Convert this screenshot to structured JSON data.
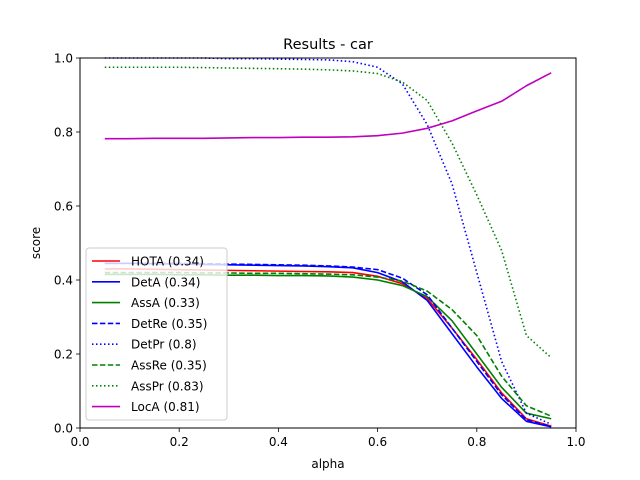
{
  "chart_data": {
    "type": "line",
    "title": "Results - car",
    "xlabel": "alpha",
    "ylabel": "score",
    "xlim": [
      0.0,
      1.0
    ],
    "ylim": [
      0.0,
      1.0
    ],
    "xticks": [
      0.0,
      0.2,
      0.4,
      0.6,
      0.8,
      1.0
    ],
    "yticks": [
      0.0,
      0.2,
      0.4,
      0.6,
      0.8,
      1.0
    ],
    "xtick_labels": [
      "0.0",
      "0.2",
      "0.4",
      "0.6",
      "0.8",
      "1.0"
    ],
    "ytick_labels": [
      "0.0",
      "0.2",
      "0.4",
      "0.6",
      "0.8",
      "1.0"
    ],
    "grid": false,
    "legend_position": "lower-left",
    "x": [
      0.05,
      0.1,
      0.15,
      0.2,
      0.25,
      0.3,
      0.35,
      0.4,
      0.45,
      0.5,
      0.55,
      0.6,
      0.65,
      0.7,
      0.75,
      0.8,
      0.85,
      0.9,
      0.95
    ],
    "series": [
      {
        "name": "HOTA (0.34)",
        "color": "#ff0000",
        "dash": "solid",
        "values": [
          0.43,
          0.43,
          0.429,
          0.428,
          0.427,
          0.426,
          0.425,
          0.424,
          0.423,
          0.422,
          0.42,
          0.41,
          0.39,
          0.35,
          0.27,
          0.185,
          0.095,
          0.025,
          0.005
        ]
      },
      {
        "name": "DetA (0.34)",
        "color": "#0000ff",
        "dash": "solid",
        "values": [
          0.445,
          0.445,
          0.444,
          0.443,
          0.442,
          0.441,
          0.44,
          0.439,
          0.438,
          0.436,
          0.433,
          0.42,
          0.395,
          0.345,
          0.255,
          0.165,
          0.08,
          0.018,
          0.003
        ]
      },
      {
        "name": "AssA (0.33)",
        "color": "#008000",
        "dash": "solid",
        "values": [
          0.415,
          0.415,
          0.415,
          0.414,
          0.414,
          0.413,
          0.413,
          0.412,
          0.412,
          0.411,
          0.408,
          0.4,
          0.385,
          0.355,
          0.29,
          0.2,
          0.11,
          0.04,
          0.025
        ]
      },
      {
        "name": "DetRe (0.35)",
        "color": "#0000ff",
        "dash": "dashed",
        "values": [
          0.445,
          0.445,
          0.445,
          0.445,
          0.444,
          0.443,
          0.442,
          0.441,
          0.44,
          0.438,
          0.435,
          0.428,
          0.405,
          0.36,
          0.27,
          0.18,
          0.09,
          0.022,
          0.004
        ]
      },
      {
        "name": "DetPr (0.8)",
        "color": "#0000ff",
        "dash": "dotted",
        "values": [
          1.0,
          1.0,
          1.0,
          1.0,
          1.0,
          0.998,
          0.998,
          0.997,
          0.996,
          0.995,
          0.99,
          0.975,
          0.93,
          0.82,
          0.66,
          0.42,
          0.18,
          0.04,
          0.01
        ]
      },
      {
        "name": "AssRe (0.35)",
        "color": "#008000",
        "dash": "dashed",
        "values": [
          0.42,
          0.42,
          0.42,
          0.42,
          0.419,
          0.419,
          0.418,
          0.418,
          0.417,
          0.416,
          0.414,
          0.408,
          0.397,
          0.37,
          0.32,
          0.25,
          0.14,
          0.06,
          0.032
        ]
      },
      {
        "name": "AssPr (0.83)",
        "color": "#008000",
        "dash": "dotted",
        "values": [
          0.975,
          0.975,
          0.975,
          0.975,
          0.974,
          0.973,
          0.972,
          0.971,
          0.97,
          0.968,
          0.965,
          0.958,
          0.935,
          0.885,
          0.77,
          0.63,
          0.48,
          0.25,
          0.19
        ]
      },
      {
        "name": "LocA (0.81)",
        "color": "#bf00bf",
        "dash": "solid",
        "values": [
          0.782,
          0.782,
          0.783,
          0.783,
          0.783,
          0.784,
          0.785,
          0.785,
          0.786,
          0.786,
          0.787,
          0.79,
          0.797,
          0.81,
          0.83,
          0.857,
          0.883,
          0.925,
          0.96
        ]
      }
    ]
  }
}
